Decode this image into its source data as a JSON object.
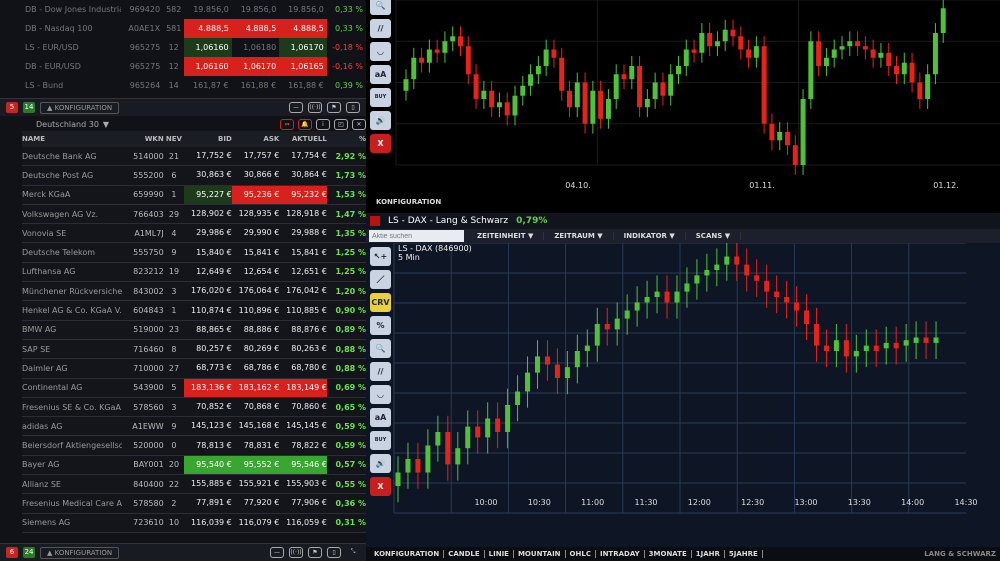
{
  "indices": [
    {
      "name": "DB - Dow Jones Industria",
      "wkn": "969420",
      "nev": "582",
      "bid": "19.856,0",
      "ask": "19.856,0",
      "last": "19.856,0",
      "pct": "0,33 %",
      "dir": "up",
      "hl": [
        "",
        "",
        ""
      ]
    },
    {
      "name": "DB - Nasdaq 100",
      "wkn": "A0AE1X",
      "nev": "581",
      "bid": "4.888,5",
      "ask": "4.888,5",
      "last": "4.888,5",
      "pct": "0,33 %",
      "dir": "up",
      "hl": [
        "red",
        "red",
        "red"
      ]
    },
    {
      "name": "LS - EUR/USD",
      "wkn": "965275",
      "nev": "12",
      "bid": "1,06160",
      "ask": "1,06180",
      "last": "1,06170",
      "pct": "-0,18 %",
      "dir": "dn",
      "hl": [
        "dkg",
        "",
        "dkg"
      ]
    },
    {
      "name": "DB - EUR/USD",
      "wkn": "965275",
      "nev": "12",
      "bid": "1,06160",
      "ask": "1,06170",
      "last": "1,06165",
      "pct": "-0,16 %",
      "dir": "dn",
      "hl": [
        "red",
        "red",
        "red"
      ]
    },
    {
      "name": "LS - Bund",
      "wkn": "965264",
      "nev": "14",
      "bid": "161,87 €",
      "ask": "161,88 €",
      "last": "161,88 €",
      "pct": "0,39 %",
      "dir": "up",
      "hl": [
        "",
        "",
        ""
      ]
    }
  ],
  "bar1": {
    "count_red": "5",
    "count_green": "14",
    "config": "▲ KONFIGURATION"
  },
  "watchlist": {
    "title": "Deutschland 30",
    "columns": [
      "NAME",
      "WKN",
      "NEV",
      "BID",
      "ASK",
      "AKTUELL",
      "%"
    ],
    "rows": [
      [
        "Deutsche Bank AG",
        "514000",
        "21",
        "17,752 €",
        "17,757 €",
        "17,754 €",
        "2,92 %",
        ""
      ],
      [
        "Deutsche Post AG",
        "555200",
        "6",
        "30,863 €",
        "30,866 €",
        "30,864 €",
        "1,73 %",
        ""
      ],
      [
        "Merck KGaA",
        "659990",
        "1",
        "95,227 €",
        "95,236 €",
        "95,232 €",
        "1,53 %",
        "dkg,red,red"
      ],
      [
        "Volkswagen AG Vz.",
        "766403",
        "29",
        "128,902 €",
        "128,935 €",
        "128,918 €",
        "1,47 %",
        ""
      ],
      [
        "Vonovia SE",
        "A1ML7J",
        "4",
        "29,986 €",
        "29,990 €",
        "29,988 €",
        "1,35 %",
        ""
      ],
      [
        "Deutsche Telekom",
        "555750",
        "9",
        "15,840 €",
        "15,841 €",
        "15,841 €",
        "1,25 %",
        ""
      ],
      [
        "Lufthansa AG",
        "823212",
        "19",
        "12,649 €",
        "12,654 €",
        "12,651 €",
        "1,25 %",
        ""
      ],
      [
        "Münchener Rückversiche",
        "843002",
        "3",
        "176,020 €",
        "176,064 €",
        "176,042 €",
        "1,20 %",
        ""
      ],
      [
        "Henkel AG & Co. KGaA V.",
        "604843",
        "1",
        "110,874 €",
        "110,896 €",
        "110,885 €",
        "0,90 %",
        ""
      ],
      [
        "BMW AG",
        "519000",
        "23",
        "88,865 €",
        "88,886 €",
        "88,876 €",
        "0,89 %",
        ""
      ],
      [
        "SAP SE",
        "716460",
        "8",
        "80,257 €",
        "80,269 €",
        "80,263 €",
        "0,88 %",
        ""
      ],
      [
        "Daimler AG",
        "710000",
        "27",
        "68,773 €",
        "68,786 €",
        "68,780 €",
        "0,88 %",
        ""
      ],
      [
        "Continental AG",
        "543900",
        "5",
        "183,136 €",
        "183,162 €",
        "183,149 €",
        "0,69 %",
        "red,red,red"
      ],
      [
        "Fresenius SE & Co. KGaA",
        "578560",
        "3",
        "70,852 €",
        "70,868 €",
        "70,860 €",
        "0,65 %",
        ""
      ],
      [
        "adidas AG",
        "A1EWW",
        "9",
        "145,123 €",
        "145,168 €",
        "145,145 €",
        "0,59 %",
        ""
      ],
      [
        "Beiersdorf Aktiengesellsc",
        "520000",
        "0",
        "78,813 €",
        "78,831 €",
        "78,822 €",
        "0,59 %",
        ""
      ],
      [
        "Bayer AG",
        "BAY001",
        "20",
        "95,540 €",
        "95,552 €",
        "95,546 €",
        "0,57 %",
        "brg,brg,brg"
      ],
      [
        "Allianz SE",
        "840400",
        "22",
        "155,885 €",
        "155,921 €",
        "155,903 €",
        "0,55 %",
        ""
      ],
      [
        "Fresenius Medical Care A",
        "578580",
        "2",
        "77,891 €",
        "77,920 €",
        "77,906 €",
        "0,36 %",
        ""
      ],
      [
        "Siemens AG",
        "723610",
        "10",
        "116,039 €",
        "116,079 €",
        "116,059 €",
        "0,31 %",
        ""
      ]
    ]
  },
  "bar2": {
    "count_red": "6",
    "count_green": "24",
    "config": "▲ KONFIGURATION"
  },
  "top_chart": {
    "x_ticks": [
      "04.10.",
      "01.11.",
      "01.12."
    ],
    "config": "KONFIGURATION"
  },
  "tools": [
    "🔍",
    "//",
    "◡",
    "aA",
    "BUY SELL",
    "🔊",
    "X"
  ],
  "tools2": [
    "↖+",
    "／",
    "CRV",
    "%",
    "🔍",
    "//",
    "◡",
    "aA",
    "BUY SELL",
    "🔊",
    "X"
  ],
  "dax": {
    "title": "LS - DAX - Lang & Schwarz",
    "change": "0,79%",
    "search_placeholder": "Aktie suchen",
    "menus": [
      "ZEITEINHEIT ▼",
      "ZEITRAUM ▼",
      "INDIKATOR ▼",
      "SCANS ▼"
    ],
    "instrument": "LS - DAX (846900)",
    "interval": "5 Min",
    "x_ticks": [
      "10:00",
      "10:30",
      "11:00",
      "11:30",
      "12:00",
      "12:30",
      "13:00",
      "13:30",
      "14:00",
      "14:30"
    ],
    "bottom_menu": [
      "KONFIGURATION",
      "CANDLE",
      "LINIE",
      "MOUNTAIN",
      "OHLC",
      "INTRADAY",
      "3MONATE",
      "1JAHR",
      "5JAHRE"
    ],
    "brand": "LANG & SCHWARZ"
  },
  "colors": {
    "up": "#4fc23a",
    "down": "#e5231b"
  }
}
